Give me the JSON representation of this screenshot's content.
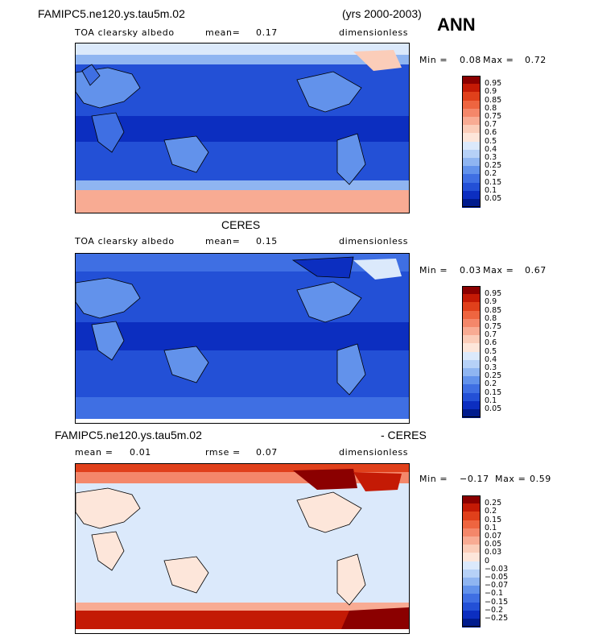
{
  "header": {
    "case_name": "FAMIPC5.ne120.ys.tau5m.02",
    "years": "(yrs 2000-2003)",
    "season": "ANN"
  },
  "chart_data": [
    {
      "type": "heatmap",
      "panel": "model",
      "title_left": "TOA clearsky albedo",
      "mean_label": "mean=",
      "mean_value": "0.17",
      "units": "dimensionless",
      "min_label": "Min =",
      "min_value": "0.08",
      "max_label": "Max =",
      "max_value": "0.72",
      "levels": [
        "0.95",
        "0.9",
        "0.85",
        "0.8",
        "0.75",
        "0.7",
        "0.6",
        "0.5",
        "0.4",
        "0.3",
        "0.25",
        "0.2",
        "0.15",
        "0.1",
        "0.05"
      ],
      "colors": [
        "#8b0000",
        "#c41a05",
        "#e0401b",
        "#ee6540",
        "#f4876a",
        "#f8ab93",
        "#fbcdb9",
        "#fde6da",
        "#dbe9fb",
        "#b6d1f7",
        "#8fb5f1",
        "#6292eb",
        "#3f6fe3",
        "#2350d6",
        "#0c2ec0",
        "#001b8e"
      ]
    },
    {
      "type": "heatmap",
      "panel": "obs",
      "title_center": "CERES",
      "title_left": "TOA clearsky albedo",
      "mean_label": "mean=",
      "mean_value": "0.15",
      "units": "dimensionless",
      "min_label": "Min =",
      "min_value": "0.03",
      "max_label": "Max =",
      "max_value": "0.67",
      "levels": [
        "0.95",
        "0.9",
        "0.85",
        "0.8",
        "0.75",
        "0.7",
        "0.6",
        "0.5",
        "0.4",
        "0.3",
        "0.25",
        "0.2",
        "0.15",
        "0.1",
        "0.05"
      ],
      "colors": [
        "#8b0000",
        "#c41a05",
        "#e0401b",
        "#ee6540",
        "#f4876a",
        "#f8ab93",
        "#fbcdb9",
        "#fde6da",
        "#dbe9fb",
        "#b6d1f7",
        "#8fb5f1",
        "#6292eb",
        "#3f6fe3",
        "#2350d6",
        "#0c2ec0",
        "#001b8e"
      ]
    },
    {
      "type": "heatmap",
      "panel": "difference",
      "title_left": "FAMIPC5.ne120.ys.tau5m.02",
      "title_right": "- CERES",
      "mean_label": "mean =",
      "mean_value": "0.01",
      "rmse_label": "rmse =",
      "rmse_value": "0.07",
      "units": "dimensionless",
      "min_label": "Min =",
      "min_value": "−0.17",
      "max_label": "Max =",
      "max_value": "0.59",
      "levels": [
        "0.25",
        "0.2",
        "0.15",
        "0.1",
        "0.07",
        "0.05",
        "0.03",
        "0",
        "−0.03",
        "−0.05",
        "−0.07",
        "−0.1",
        "−0.15",
        "−0.2",
        "−0.25"
      ],
      "colors": [
        "#8b0000",
        "#c41a05",
        "#e0401b",
        "#ee6540",
        "#f4876a",
        "#f8ab93",
        "#fbcdb9",
        "#fde6da",
        "#dbe9fb",
        "#b6d1f7",
        "#8fb5f1",
        "#6292eb",
        "#3f6fe3",
        "#2350d6",
        "#0c2ec0",
        "#001b8e"
      ]
    }
  ]
}
